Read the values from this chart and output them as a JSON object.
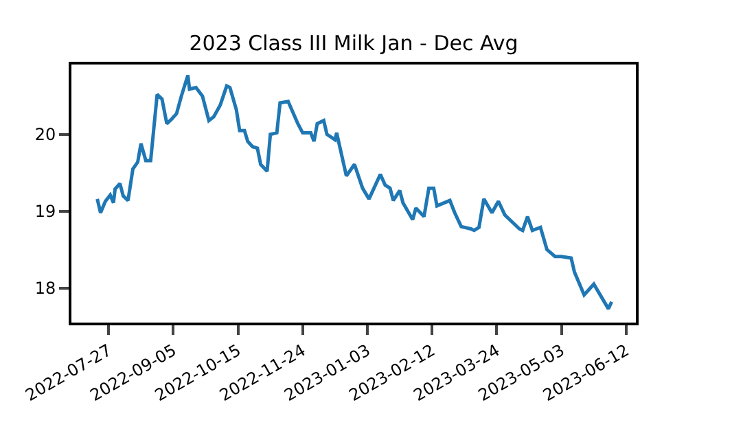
{
  "chart_data": {
    "type": "line",
    "title": "2023 Class III Milk Jan - Dec Avg",
    "xlim": [
      "2022-07-04",
      "2023-06-18"
    ],
    "xticks": [
      "2022-07-27",
      "2022-09-05",
      "2022-10-15",
      "2022-11-24",
      "2023-01-03",
      "2023-02-12",
      "2023-03-24",
      "2023-05-03",
      "2023-06-12"
    ],
    "ylim": [
      17.55,
      20.91
    ],
    "yticks": [
      18,
      19,
      20
    ],
    "x": [
      "2022-07-20",
      "2022-07-22",
      "2022-07-25",
      "2022-07-28",
      "2022-07-30",
      "2022-07-31",
      "2022-08-03",
      "2022-08-05",
      "2022-08-08",
      "2022-08-11",
      "2022-08-14",
      "2022-08-16",
      "2022-08-19",
      "2022-08-22",
      "2022-08-24",
      "2022-08-26",
      "2022-08-29",
      "2022-09-01",
      "2022-09-04",
      "2022-09-07",
      "2022-09-10",
      "2022-09-14",
      "2022-09-15",
      "2022-09-19",
      "2022-09-23",
      "2022-09-27",
      "2022-09-30",
      "2022-10-04",
      "2022-10-08",
      "2022-10-10",
      "2022-10-14",
      "2022-10-16",
      "2022-10-19",
      "2022-10-21",
      "2022-10-24",
      "2022-10-27",
      "2022-10-29",
      "2022-11-02",
      "2022-11-04",
      "2022-11-08",
      "2022-11-10",
      "2022-11-15",
      "2022-11-21",
      "2022-11-24",
      "2022-11-29",
      "2022-12-01",
      "2022-12-03",
      "2022-12-07",
      "2022-12-09",
      "2022-12-14",
      "2022-12-15",
      "2022-12-21",
      "2022-12-26",
      "2022-12-31",
      "2023-01-04",
      "2023-01-11",
      "2023-01-14",
      "2023-01-17",
      "2023-01-19",
      "2023-01-23",
      "2023-01-25",
      "2023-01-31",
      "2023-02-02",
      "2023-02-07",
      "2023-02-10",
      "2023-02-13",
      "2023-02-15",
      "2023-02-23",
      "2023-02-26",
      "2023-03-02",
      "2023-03-08",
      "2023-03-10",
      "2023-03-13",
      "2023-03-16",
      "2023-03-21",
      "2023-03-25",
      "2023-03-29",
      "2023-04-07",
      "2023-04-09",
      "2023-04-12",
      "2023-04-15",
      "2023-04-20",
      "2023-04-24",
      "2023-04-29",
      "2023-05-03",
      "2023-05-09",
      "2023-05-11",
      "2023-05-17",
      "2023-05-23",
      "2023-06-01",
      "2023-06-03"
    ],
    "series": [
      {
        "color": "#1f77b4",
        "values": [
          19.16,
          18.98,
          19.13,
          19.21,
          19.11,
          19.29,
          19.36,
          19.2,
          19.14,
          19.55,
          19.64,
          19.88,
          19.66,
          19.66,
          20.09,
          20.52,
          20.46,
          20.14,
          20.2,
          20.27,
          20.5,
          20.77,
          20.59,
          20.61,
          20.5,
          20.18,
          20.23,
          20.38,
          20.63,
          20.61,
          20.32,
          20.05,
          20.05,
          19.91,
          19.84,
          19.82,
          19.61,
          19.52,
          20.0,
          20.02,
          20.41,
          20.43,
          20.14,
          20.02,
          20.02,
          19.91,
          20.14,
          20.18,
          20.0,
          19.93,
          20.02,
          19.46,
          19.61,
          19.3,
          19.16,
          19.48,
          19.34,
          19.3,
          19.14,
          19.27,
          19.11,
          18.89,
          19.04,
          18.93,
          19.3,
          19.3,
          19.07,
          19.14,
          18.98,
          18.8,
          18.77,
          18.75,
          18.79,
          19.16,
          18.98,
          19.13,
          18.95,
          18.77,
          18.75,
          18.93,
          18.75,
          18.79,
          18.5,
          18.41,
          18.41,
          18.39,
          18.21,
          17.91,
          18.05,
          17.73,
          17.82
        ]
      }
    ],
    "marker": "none",
    "line_style": "solid"
  }
}
